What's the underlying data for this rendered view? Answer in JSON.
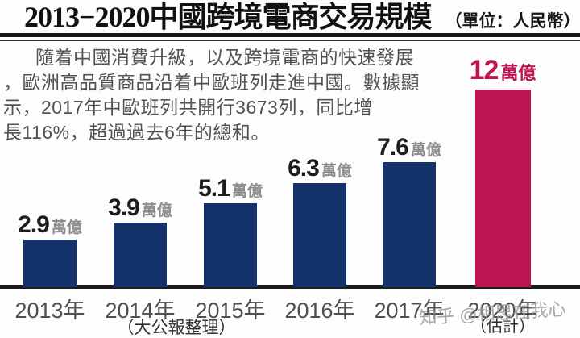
{
  "header": {
    "title": "2013−2020中國跨境電商交易規模",
    "unit_note": "（單位：人民幣）"
  },
  "paragraph": {
    "lines": [
      "隨着中國消費升級，以及跨境電商的快速發展",
      "，歐洲高品質商品沿着中歐班列走進中國。數據顯",
      "示，2017年中歐班列共開行3673列，同比增",
      "長116%，超過過去6年的總和。"
    ]
  },
  "chart_data": {
    "type": "bar",
    "title": "2013−2020中國跨境電商交易規模",
    "categories": [
      "2013年",
      "2014年",
      "2015年",
      "2016年",
      "2017年",
      "2020年"
    ],
    "values": [
      2.9,
      3.9,
      5.1,
      6.3,
      7.6,
      12
    ],
    "value_unit": "萬億",
    "highlight_index": 5,
    "bar_color": "#15336B",
    "highlight_color": "#BC1551",
    "value_color": "#1d1d1d",
    "value_unit_color": "#8c8c8c",
    "ylim": [
      0,
      12.5
    ],
    "grid": false,
    "legend": "none",
    "source_note": "（大公報整理）",
    "estimate_note": "（估計）"
  },
  "watermark": {
    "text": "知乎 @相思在我心"
  }
}
